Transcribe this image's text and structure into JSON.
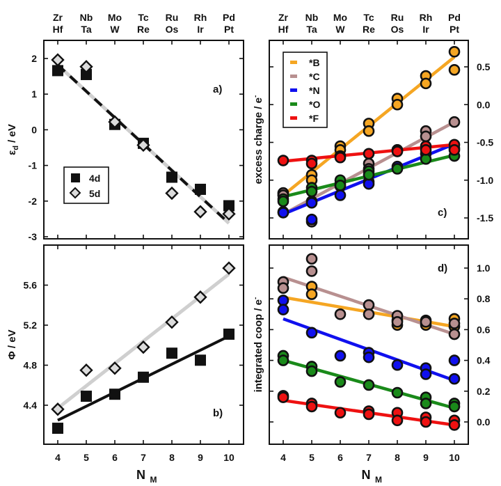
{
  "figure": {
    "top_labels_4d": [
      "Zr",
      "Nb",
      "Mo",
      "Tc",
      "Ru",
      "Rh",
      "Pd"
    ],
    "top_labels_5d": [
      "Hf",
      "Ta",
      "W",
      "Re",
      "Os",
      "Ir",
      "Pt"
    ],
    "xlabel_main": "N",
    "xlabel_sub": "M"
  },
  "chart_data": [
    {
      "id": "a",
      "type": "scatter",
      "panel_label": "a)",
      "ylabel": "εd / eV",
      "ylabel_main": "ε",
      "ylabel_sub": "d",
      "ylabel_unit": " / eV",
      "x": [
        4,
        5,
        6,
        7,
        8,
        9,
        10
      ],
      "xlim": [
        3.5,
        10.5
      ],
      "ylim": [
        -3,
        2.5
      ],
      "yticks": [
        2,
        1,
        0,
        -1,
        -2,
        -3
      ],
      "ytick_labels": [
        "2",
        "1",
        "0",
        "-1",
        "-2",
        "-3"
      ],
      "legend": {
        "position": "lower-left",
        "entries": [
          {
            "label": "4d",
            "marker": "square"
          },
          {
            "label": "5d",
            "marker": "diamond"
          }
        ]
      },
      "series": [
        {
          "name": "4d",
          "marker": "square",
          "color": "#111111",
          "values": [
            1.66,
            1.55,
            0.15,
            -0.38,
            -1.33,
            -1.67,
            -2.13
          ]
        },
        {
          "name": "5d",
          "marker": "diamond",
          "color": "#d9d9d9",
          "values": [
            1.96,
            1.77,
            0.22,
            -0.43,
            -1.78,
            -2.3,
            -2.36
          ]
        }
      ],
      "fit_lines": [
        {
          "name": "4d fit",
          "style": "dashed",
          "color": "#111111",
          "x": [
            4,
            10
          ],
          "y": [
            1.82,
            -2.62
          ]
        },
        {
          "name": "5d fit",
          "style": "solid",
          "color": "#cfcfcf",
          "x": [
            4,
            10
          ],
          "y": [
            1.82,
            -2.62
          ]
        }
      ]
    },
    {
      "id": "b",
      "type": "scatter",
      "panel_label": "b)",
      "ylabel": "Φ / eV",
      "ylabel_main": "Φ",
      "ylabel_unit": " / eV",
      "x": [
        4,
        5,
        6,
        7,
        8,
        9,
        10
      ],
      "xlim": [
        3.5,
        10.5
      ],
      "ylim": [
        4.0,
        5.8
      ],
      "yticks": [
        5.6,
        5.2,
        4.8,
        4.4
      ],
      "ytick_labels": [
        "5.6",
        "5.2",
        "4.8",
        "4.4"
      ],
      "xticks": [
        4,
        5,
        6,
        7,
        8,
        9,
        10
      ],
      "xtick_labels": [
        "4",
        "5",
        "6",
        "7",
        "8",
        "9",
        "10"
      ],
      "series": [
        {
          "name": "4d",
          "marker": "square",
          "color": "#111111",
          "values": [
            4.17,
            4.49,
            4.51,
            4.68,
            4.92,
            4.85,
            5.11
          ]
        },
        {
          "name": "5d",
          "marker": "diamond",
          "color": "#d9d9d9",
          "values": [
            4.36,
            4.75,
            4.77,
            4.98,
            5.23,
            5.48,
            5.77
          ]
        }
      ],
      "fit_lines": [
        {
          "name": "4d fit",
          "style": "solid",
          "color": "#111111",
          "x": [
            4,
            10
          ],
          "y": [
            4.25,
            5.09
          ]
        },
        {
          "name": "5d fit",
          "style": "solid",
          "color": "#cfcfcf",
          "x": [
            4,
            10
          ],
          "y": [
            4.37,
            5.71
          ]
        }
      ]
    },
    {
      "id": "c",
      "type": "scatter",
      "panel_label": "c)",
      "ylabel": "excess charge / e-",
      "ylabel_main": "excess charge  /  e",
      "ylabel_sup": "-",
      "y_axis_side": "right",
      "x": [
        4,
        5,
        6,
        7,
        8,
        9,
        10
      ],
      "xlim": [
        3.5,
        10.5
      ],
      "ylim": [
        -1.75,
        0.82
      ],
      "yticks": [
        0.5,
        0.0,
        -0.5,
        -1.0,
        -1.5
      ],
      "ytick_labels": [
        "0.5",
        "0.0",
        "-0.5",
        "-1.0",
        "-1.5"
      ],
      "legend": {
        "position": "top-left",
        "entries": [
          {
            "label": "*B",
            "color": "#f5a623"
          },
          {
            "label": "*C",
            "color": "#b89090"
          },
          {
            "label": "*N",
            "color": "#1010ee"
          },
          {
            "label": "*O",
            "color": "#1a8a1a"
          },
          {
            "label": "*F",
            "color": "#ee1111"
          }
        ]
      },
      "series": [
        {
          "name": "*B",
          "color": "#f5a623",
          "points": [
            [
              4,
              -1.17
            ],
            [
              4,
              -1.2
            ],
            [
              5,
              -0.93
            ],
            [
              5,
              -1.0
            ],
            [
              6,
              -0.55
            ],
            [
              6,
              -0.6
            ],
            [
              7,
              -0.25
            ],
            [
              7,
              -0.35
            ],
            [
              8,
              0.08
            ],
            [
              8,
              0.0
            ],
            [
              9,
              0.38
            ],
            [
              9,
              0.28
            ],
            [
              10,
              0.7
            ],
            [
              10,
              0.46
            ]
          ],
          "fit": [
            [
              4,
              -1.2
            ],
            [
              10,
              0.63
            ]
          ]
        },
        {
          "name": "*C",
          "color": "#b89090",
          "points": [
            [
              4,
              -1.17
            ],
            [
              4,
              -1.2
            ],
            [
              5,
              -1.55
            ],
            [
              5,
              -1.28
            ],
            [
              6,
              -1.05
            ],
            [
              6,
              -1.08
            ],
            [
              7,
              -0.78
            ],
            [
              7,
              -0.85
            ],
            [
              8,
              -0.6
            ],
            [
              9,
              -0.35
            ],
            [
              9,
              -0.42
            ],
            [
              10,
              -0.23
            ]
          ],
          "fit": [
            [
              4,
              -1.45
            ],
            [
              10,
              -0.23
            ]
          ]
        },
        {
          "name": "*N",
          "color": "#1010ee",
          "points": [
            [
              4,
              -1.42
            ],
            [
              4,
              -1.43
            ],
            [
              5,
              -1.3
            ],
            [
              5,
              -1.52
            ],
            [
              6,
              -1.2
            ],
            [
              7,
              -1.02
            ],
            [
              7,
              -1.05
            ],
            [
              8,
              -0.82
            ],
            [
              9,
              -0.65
            ],
            [
              10,
              -0.58
            ]
          ],
          "fit": [
            [
              4,
              -1.45
            ],
            [
              10,
              -0.52
            ]
          ]
        },
        {
          "name": "*O",
          "color": "#1a8a1a",
          "points": [
            [
              4,
              -1.25
            ],
            [
              4,
              -1.28
            ],
            [
              5,
              -1.1
            ],
            [
              5,
              -1.15
            ],
            [
              6,
              -1.0
            ],
            [
              6,
              -1.07
            ],
            [
              7,
              -0.88
            ],
            [
              7,
              -0.93
            ],
            [
              8,
              -0.85
            ],
            [
              9,
              -0.72
            ],
            [
              10,
              -0.68
            ]
          ],
          "fit": [
            [
              4,
              -1.22
            ],
            [
              10,
              -0.67
            ]
          ]
        },
        {
          "name": "*F",
          "color": "#ee1111",
          "points": [
            [
              4,
              -0.74
            ],
            [
              5,
              -0.74
            ],
            [
              5,
              -0.78
            ],
            [
              6,
              -0.68
            ],
            [
              6,
              -0.7
            ],
            [
              7,
              -0.65
            ],
            [
              8,
              -0.6
            ],
            [
              8,
              -0.62
            ],
            [
              9,
              -0.55
            ],
            [
              9,
              -0.6
            ],
            [
              10,
              -0.53
            ],
            [
              10,
              -0.6
            ]
          ],
          "fit": [
            [
              4,
              -0.75
            ],
            [
              10,
              -0.53
            ]
          ]
        }
      ]
    },
    {
      "id": "d",
      "type": "scatter",
      "panel_label": "d)",
      "ylabel": "integrated coop / e-",
      "ylabel_main": "integrated coop / e",
      "ylabel_sup": "-",
      "y_axis_side": "right",
      "x": [
        4,
        5,
        6,
        7,
        8,
        9,
        10
      ],
      "xlim": [
        3.5,
        10.5
      ],
      "ylim": [
        -0.15,
        1.12
      ],
      "yticks": [
        1.0,
        0.8,
        0.6,
        0.4,
        0.2,
        0.0
      ],
      "ytick_labels": [
        "1.0",
        "0.8",
        "0.6",
        "0.4",
        "0.2",
        "0.0"
      ],
      "xticks": [
        4,
        5,
        6,
        7,
        8,
        9,
        10
      ],
      "xtick_labels": [
        "4",
        "5",
        "6",
        "7",
        "8",
        "9",
        "10"
      ],
      "series": [
        {
          "name": "*B",
          "color": "#f5a623",
          "points": [
            [
              5,
              0.88
            ],
            [
              5,
              0.83
            ],
            [
              8,
              0.66
            ],
            [
              8,
              0.63
            ],
            [
              9,
              0.66
            ],
            [
              9,
              0.63
            ],
            [
              10,
              0.67
            ],
            [
              10,
              0.62
            ]
          ],
          "fit": [
            [
              4,
              0.81
            ],
            [
              10,
              0.62
            ]
          ]
        },
        {
          "name": "*C",
          "color": "#b89090",
          "points": [
            [
              4,
              0.91
            ],
            [
              4,
              0.87
            ],
            [
              5,
              1.06
            ],
            [
              5,
              0.98
            ],
            [
              6,
              0.7
            ],
            [
              7,
              0.76
            ],
            [
              7,
              0.7
            ],
            [
              8,
              0.69
            ],
            [
              8,
              0.65
            ],
            [
              9,
              0.65
            ],
            [
              10,
              0.64
            ],
            [
              10,
              0.57
            ]
          ],
          "fit": [
            [
              4,
              0.94
            ],
            [
              10,
              0.57
            ]
          ]
        },
        {
          "name": "*N",
          "color": "#1010ee",
          "points": [
            [
              4,
              0.79
            ],
            [
              4,
              0.73
            ],
            [
              5,
              0.58
            ],
            [
              6,
              0.43
            ],
            [
              7,
              0.45
            ],
            [
              7,
              0.42
            ],
            [
              8,
              0.37
            ],
            [
              9,
              0.35
            ],
            [
              9,
              0.31
            ],
            [
              10,
              0.4
            ],
            [
              10,
              0.28
            ]
          ],
          "fit": [
            [
              4,
              0.67
            ],
            [
              10,
              0.27
            ]
          ]
        },
        {
          "name": "*O",
          "color": "#1a8a1a",
          "points": [
            [
              4,
              0.43
            ],
            [
              4,
              0.4
            ],
            [
              5,
              0.36
            ],
            [
              5,
              0.33
            ],
            [
              6,
              0.26
            ],
            [
              7,
              0.24
            ],
            [
              8,
              0.19
            ],
            [
              9,
              0.16
            ],
            [
              9,
              0.12
            ],
            [
              10,
              0.12
            ],
            [
              10,
              0.1
            ]
          ],
          "fit": [
            [
              4,
              0.4
            ],
            [
              10,
              0.09
            ]
          ]
        },
        {
          "name": "*F",
          "color": "#ee1111",
          "points": [
            [
              4,
              0.17
            ],
            [
              4,
              0.16
            ],
            [
              5,
              0.12
            ],
            [
              5,
              0.1
            ],
            [
              6,
              0.06
            ],
            [
              7,
              0.07
            ],
            [
              7,
              0.05
            ],
            [
              8,
              0.06
            ],
            [
              8,
              0.01
            ],
            [
              9,
              0.03
            ],
            [
              9,
              0.0
            ],
            [
              10,
              0.01
            ],
            [
              10,
              -0.02
            ]
          ],
          "fit": [
            [
              4,
              0.14
            ],
            [
              10,
              -0.02
            ]
          ]
        }
      ]
    }
  ]
}
